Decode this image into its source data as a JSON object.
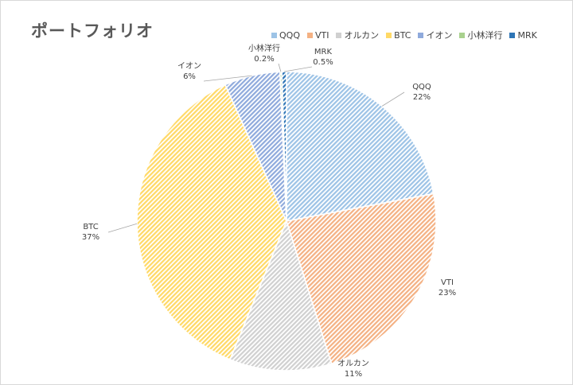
{
  "chart_data": {
    "type": "pie",
    "title": "ポートフォリオ",
    "legend_position": "top-right",
    "categories": [
      "QQQ",
      "VTI",
      "オルカン",
      "BTC",
      "イオン",
      "小林洋行",
      "MRK"
    ],
    "values": [
      22,
      23,
      11,
      37,
      6,
      0.2,
      0.5
    ],
    "value_labels": [
      "22%",
      "23%",
      "11%",
      "37%",
      "6%",
      "0.2%",
      "0.5%"
    ],
    "colors": [
      "#9dc3e6",
      "#f4b183",
      "#d0d0d0",
      "#ffd966",
      "#8faadc",
      "#a9d18e",
      "#2e75b6"
    ]
  }
}
